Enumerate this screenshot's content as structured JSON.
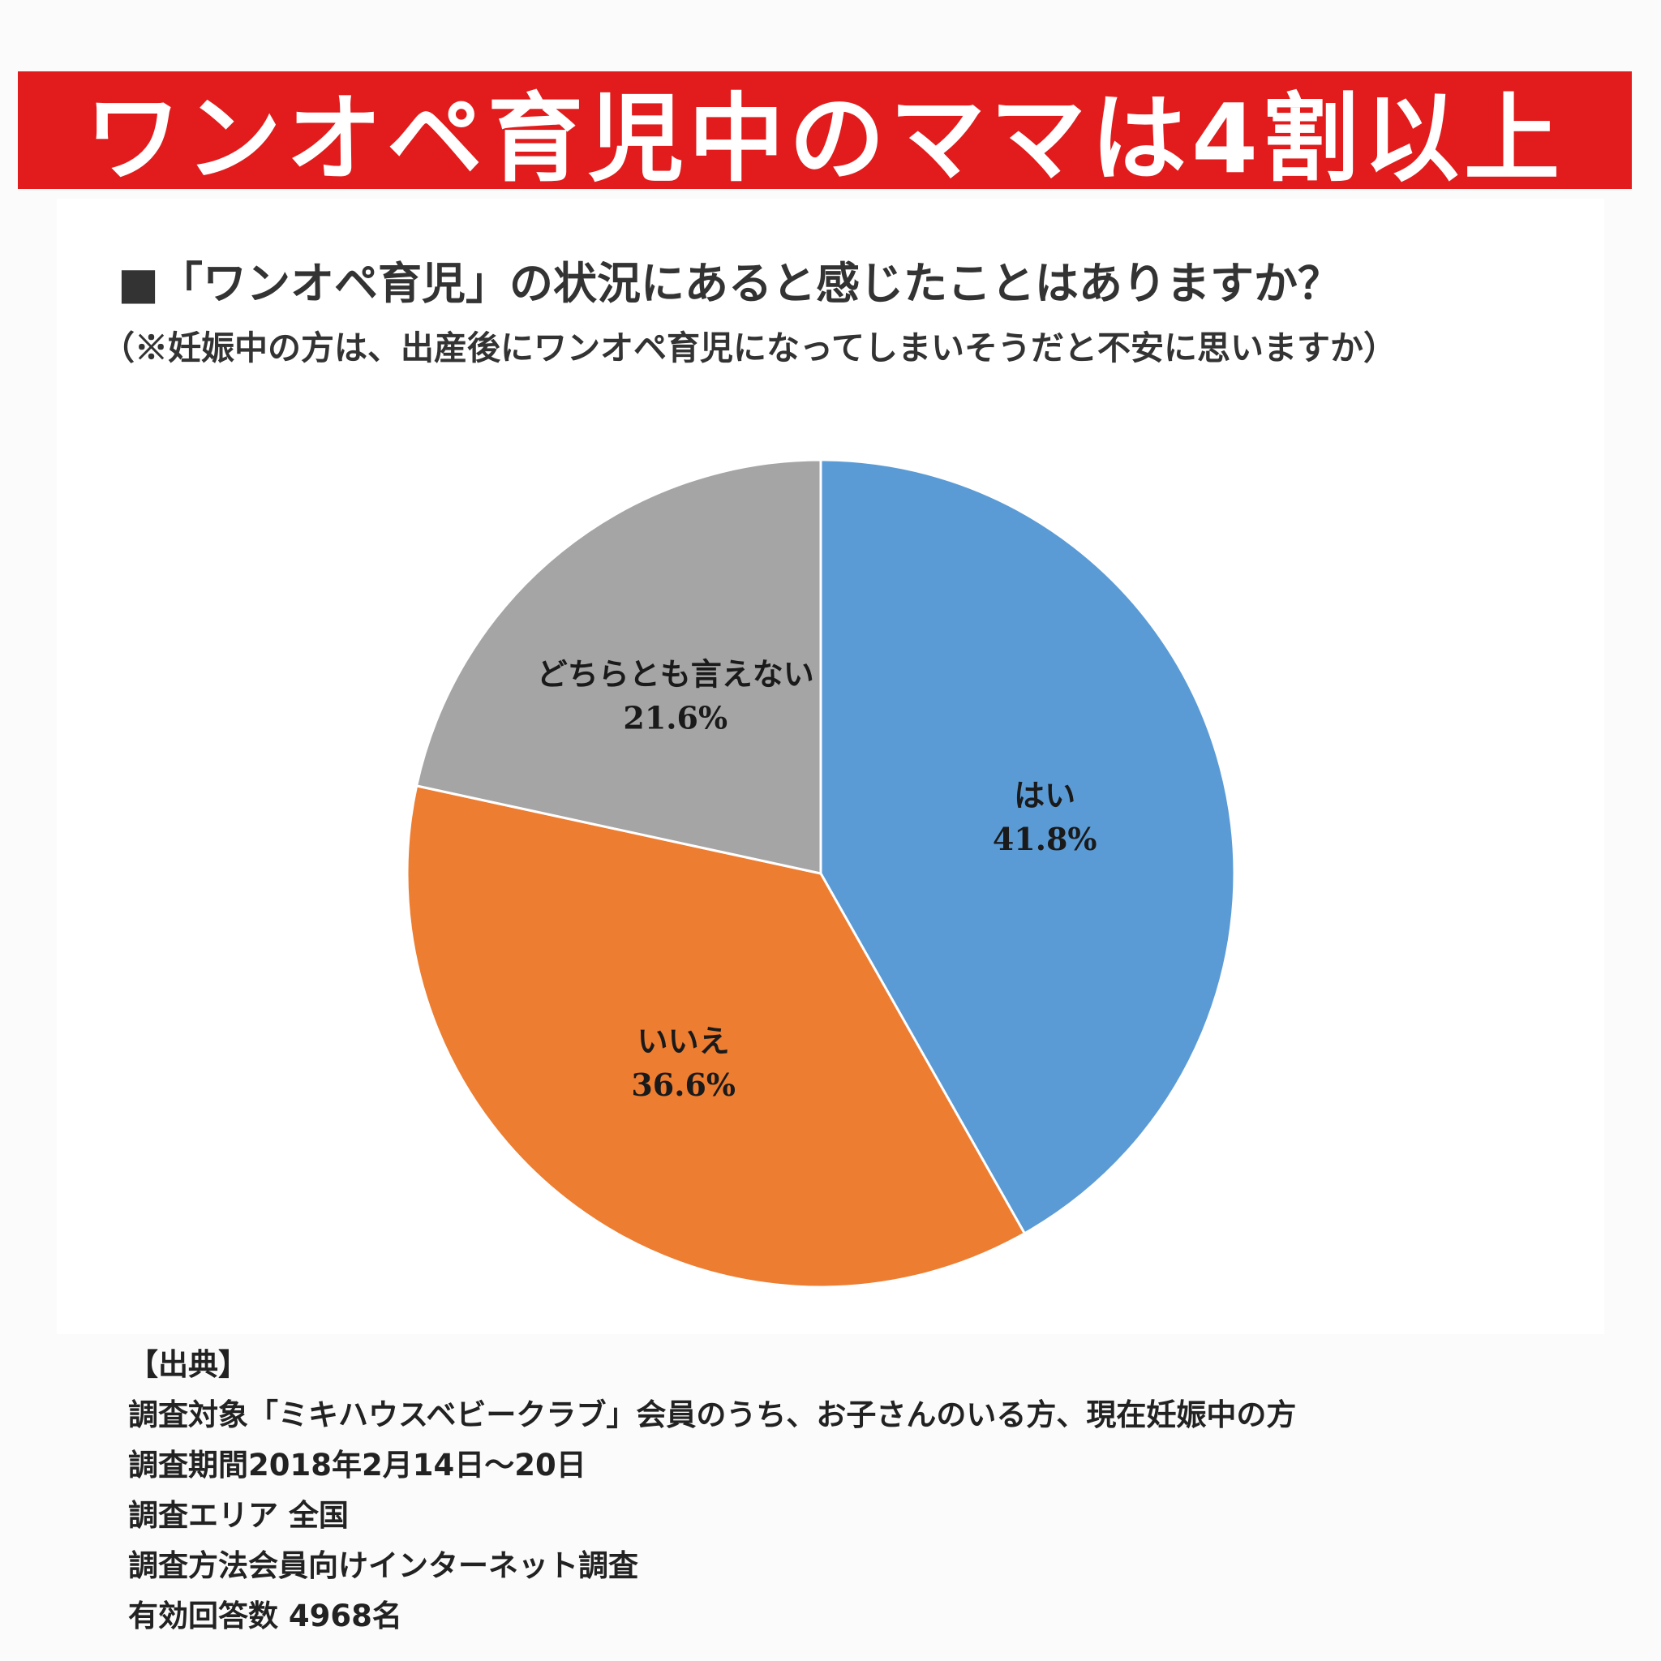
{
  "banner": {
    "text": "ワンオペ育児中のママは4割以上"
  },
  "chart_data": {
    "type": "pie",
    "title": "■「ワンオペ育児」の状況にあると感じたことはありますか？",
    "subtitle": "（※妊娠中の方は、出産後にワンオペ育児になってしまいそうだと不安に思いますか）",
    "slices": [
      {
        "label": "はい",
        "value": 41.8,
        "display": "41.8%",
        "color": "#5b9bd5"
      },
      {
        "label": "いいえ",
        "value": 36.6,
        "display": "36.6%",
        "color": "#ed7d31"
      },
      {
        "label": "どちらとも言えない",
        "value": 21.6,
        "display": "21.6%",
        "color": "#a5a5a5"
      }
    ]
  },
  "source": {
    "heading": "【出典】",
    "lines": [
      "調査対象「ミキハウスベビークラブ」会員のうち、お子さんのいる方、現在妊娠中の方",
      "調査期間2018年2月14日～20日",
      "調査エリア 全国",
      "調査方法会員向けインターネット調査",
      "有効回答数 4968名"
    ]
  }
}
